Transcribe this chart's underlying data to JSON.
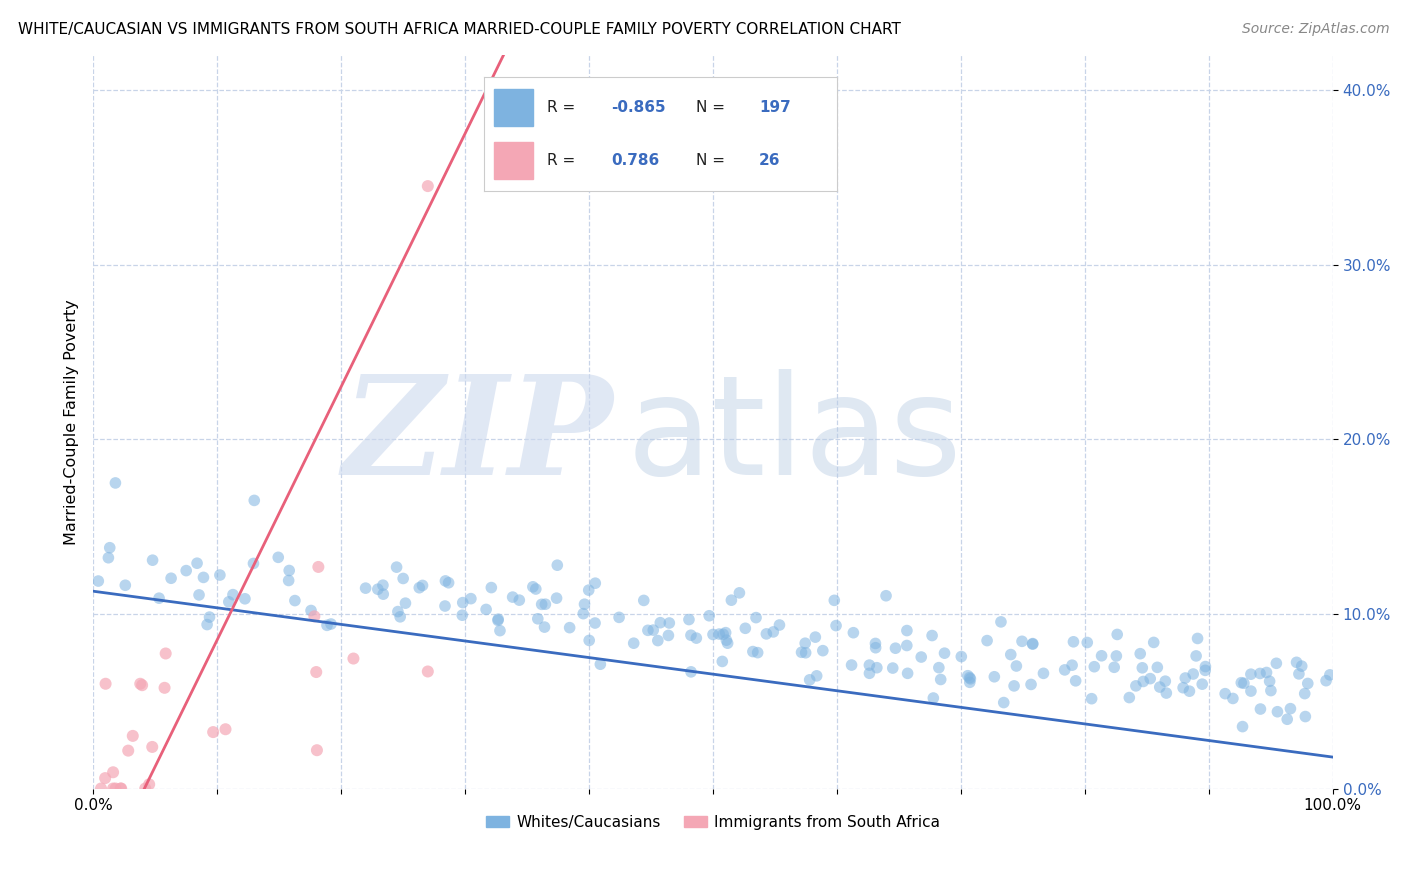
{
  "title": "WHITE/CAUCASIAN VS IMMIGRANTS FROM SOUTH AFRICA MARRIED-COUPLE FAMILY POVERTY CORRELATION CHART",
  "source": "Source: ZipAtlas.com",
  "ylabel": "Married-Couple Family Poverty",
  "xmin": 0.0,
  "xmax": 1.0,
  "ymin": 0.0,
  "ymax": 0.42,
  "blue_R": -0.865,
  "blue_N": 197,
  "pink_R": 0.786,
  "pink_N": 26,
  "blue_color": "#7eb3e0",
  "pink_color": "#f4a7b5",
  "blue_line_color": "#3a6bbf",
  "pink_line_color": "#e8607a",
  "watermark_zip": "ZIP",
  "watermark_atlas": "atlas",
  "legend_label_blue": "Whites/Caucasians",
  "legend_label_pink": "Immigrants from South Africa",
  "yticks": [
    0.0,
    0.1,
    0.2,
    0.3,
    0.4
  ],
  "ytick_labels": [
    "0.0%",
    "10.0%",
    "20.0%",
    "30.0%",
    "40.0%"
  ],
  "grid_color": "#c8d4e8",
  "background_color": "#ffffff"
}
